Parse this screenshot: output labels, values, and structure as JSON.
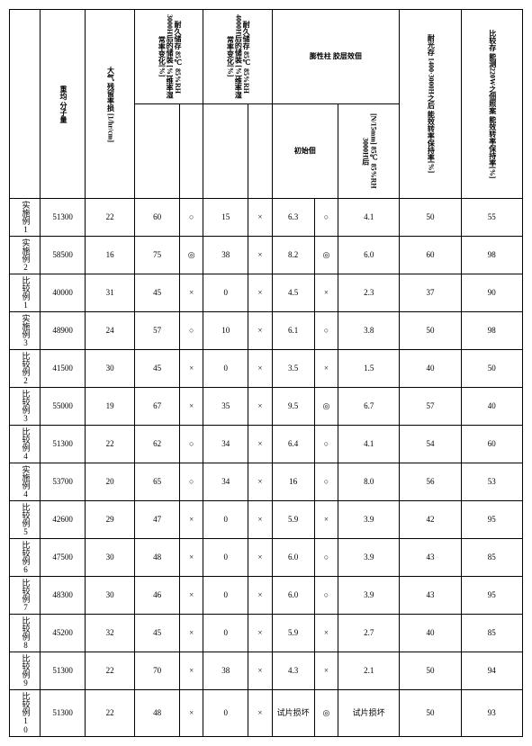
{
  "headers": {
    "c1": "重均\n分子量",
    "c2": "大气\n残留率损\n[1/hr/cm]",
    "c3_top": "耐久储存\n85℃ 85%RH\n3000H后的储装\n[%]维率湿常率变化[%]",
    "c3a": "",
    "c3b": "",
    "c4_top": "耐久储存\n85℃ 85%RH\n4000H后的储装\n[%]维率湿常率变化[%]",
    "c4a": "",
    "c4b": "",
    "c5_top": "膨性柱\n胶层效佃",
    "c5a": "初始佃",
    "c5b": "",
    "c6": "",
    "c7": "[N/15mm]\n85℃ 85%RH\n3000H后",
    "c8_top": "耐光存\n1400·3000H之后\n能效转率保持率[%]",
    "c8": "",
    "c9_top": "比较存\n能测220W之佃照案\n能效转率保持率[%]",
    "c9": ""
  },
  "rows": [
    {
      "name": "实施例1",
      "c1": "51300",
      "c2": "22",
      "c3a": "60",
      "c3b": "○",
      "c4a": "15",
      "c4b": "×",
      "c5a": "6.3",
      "c5b": "○",
      "c6": "4.1",
      "c8": "50",
      "c9": "55"
    },
    {
      "name": "实施例2",
      "c1": "58500",
      "c2": "16",
      "c3a": "75",
      "c3b": "◎",
      "c4a": "38",
      "c4b": "×",
      "c5a": "8.2",
      "c5b": "◎",
      "c6": "6.0",
      "c8": "60",
      "c9": "98"
    },
    {
      "name": "比较例1",
      "c1": "40000",
      "c2": "31",
      "c3a": "45",
      "c3b": "×",
      "c4a": "0",
      "c4b": "×",
      "c5a": "4.5",
      "c5b": "×",
      "c6": "2.3",
      "c8": "37",
      "c9": "90"
    },
    {
      "name": "实施例3",
      "c1": "48900",
      "c2": "24",
      "c3a": "57",
      "c3b": "○",
      "c4a": "10",
      "c4b": "×",
      "c5a": "6.1",
      "c5b": "○",
      "c6": "3.8",
      "c8": "50",
      "c9": "98"
    },
    {
      "name": "比较例2",
      "c1": "41500",
      "c2": "30",
      "c3a": "45",
      "c3b": "×",
      "c4a": "0",
      "c4b": "×",
      "c5a": "3.5",
      "c5b": "×",
      "c6": "1.5",
      "c8": "40",
      "c9": "50"
    },
    {
      "name": "比较例3",
      "c1": "55000",
      "c2": "19",
      "c3a": "67",
      "c3b": "×",
      "c4a": "35",
      "c4b": "×",
      "c5a": "9.5",
      "c5b": "◎",
      "c6": "6.7",
      "c8": "57",
      "c9": "40"
    },
    {
      "name": "比较例4",
      "c1": "51300",
      "c2": "22",
      "c3a": "62",
      "c3b": "○",
      "c4a": "34",
      "c4b": "×",
      "c5a": "6.4",
      "c5b": "○",
      "c6": "4.1",
      "c8": "54",
      "c9": "60"
    },
    {
      "name": "实施例4",
      "c1": "53700",
      "c2": "20",
      "c3a": "65",
      "c3b": "○",
      "c4a": "34",
      "c4b": "×",
      "c5a": "16",
      "c5b": "○",
      "c6": "8.0",
      "c8": "56",
      "c9": "53"
    },
    {
      "name": "比较例5",
      "c1": "42600",
      "c2": "29",
      "c3a": "47",
      "c3b": "×",
      "c4a": "0",
      "c4b": "×",
      "c5a": "5.9",
      "c5b": "×",
      "c6": "3.9",
      "c8": "42",
      "c9": "95"
    },
    {
      "name": "比较例6",
      "c1": "47500",
      "c2": "30",
      "c3a": "48",
      "c3b": "×",
      "c4a": "0",
      "c4b": "×",
      "c5a": "6.0",
      "c5b": "○",
      "c6": "3.9",
      "c8": "43",
      "c9": "85"
    },
    {
      "name": "比较例7",
      "c1": "48300",
      "c2": "30",
      "c3a": "46",
      "c3b": "×",
      "c4a": "0",
      "c4b": "×",
      "c5a": "6.0",
      "c5b": "○",
      "c6": "3.9",
      "c8": "43",
      "c9": "95"
    },
    {
      "name": "比较例8",
      "c1": "45200",
      "c2": "32",
      "c3a": "45",
      "c3b": "×",
      "c4a": "0",
      "c4b": "×",
      "c5a": "5.9",
      "c5b": "×",
      "c6": "2.7",
      "c8": "40",
      "c9": "85"
    },
    {
      "name": "比较例9",
      "c1": "51300",
      "c2": "22",
      "c3a": "70",
      "c3b": "×",
      "c4a": "38",
      "c4b": "×",
      "c5a": "4.3",
      "c5b": "×",
      "c6": "2.1",
      "c8": "50",
      "c9": "94"
    },
    {
      "name": "比较例10",
      "c1": "51300",
      "c2": "22",
      "c3a": "48",
      "c3b": "×",
      "c4a": "0",
      "c4b": "×",
      "c5a": "试片损坏",
      "c5b": "◎",
      "c6": "试片损坏",
      "c8": "50",
      "c9": "93"
    }
  ],
  "colwidths": [
    "26",
    "38",
    "42",
    "38",
    "20",
    "38",
    "20",
    "36",
    "20",
    "52",
    "52",
    "52"
  ]
}
